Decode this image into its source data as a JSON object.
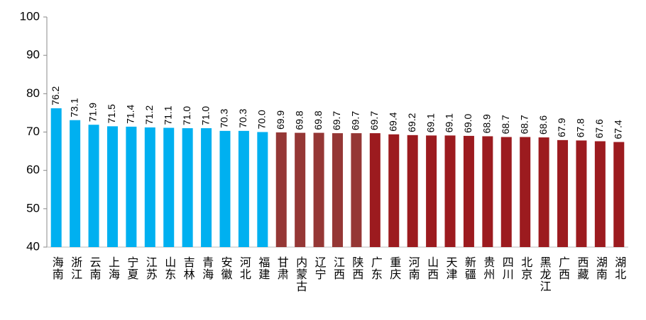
{
  "chart_data": {
    "type": "bar",
    "categories": [
      "海南",
      "浙江",
      "云南",
      "上海",
      "宁夏",
      "江苏",
      "山东",
      "吉林",
      "青海",
      "安徽",
      "河北",
      "福建",
      "甘肃",
      "内蒙古",
      "辽宁",
      "江西",
      "陕西",
      "广东",
      "重庆",
      "河南",
      "山西",
      "天津",
      "新疆",
      "贵州",
      "四川",
      "北京",
      "黑龙江",
      "广西",
      "西藏",
      "湖南",
      "湖北"
    ],
    "values": [
      76.2,
      73.1,
      71.9,
      71.5,
      71.4,
      71.2,
      71.1,
      71,
      71,
      70.3,
      70.3,
      70,
      69.9,
      69.8,
      69.8,
      69.7,
      69.7,
      69.7,
      69.4,
      69.2,
      69.1,
      69.1,
      69,
      68.9,
      68.7,
      68.7,
      68.6,
      67.9,
      67.8,
      67.6,
      67.4
    ],
    "value_labels": [
      "76.2",
      "73.1",
      "71.9",
      "71.5",
      "71.4",
      "71.2",
      "71.1",
      "71.0",
      "71.0",
      "70.3",
      "70.3",
      "70.0",
      "69.9",
      "69.8",
      "69.8",
      "69.7",
      "69.7",
      "69.7",
      "69.4",
      "69.2",
      "69.1",
      "69.1",
      "69.0",
      "68.9",
      "68.7",
      "68.7",
      "68.6",
      "67.9",
      "67.8",
      "67.6",
      "67.4"
    ],
    "colors": [
      "#00b0f0",
      "#00b0f0",
      "#00b0f0",
      "#00b0f0",
      "#00b0f0",
      "#00b0f0",
      "#00b0f0",
      "#00b0f0",
      "#00b0f0",
      "#00b0f0",
      "#00b0f0",
      "#00b0f0",
      "#953735",
      "#953735",
      "#953735",
      "#953735",
      "#953735",
      "#9c1b1f",
      "#9c1b1f",
      "#9c1b1f",
      "#9c1b1f",
      "#9c1b1f",
      "#9c1b1f",
      "#9c1b1f",
      "#9c1b1f",
      "#9c1b1f",
      "#9c1b1f",
      "#9c1b1f",
      "#9c1b1f",
      "#9c1b1f",
      "#9c1b1f"
    ],
    "ylim": [
      40,
      100
    ],
    "yticks": [
      40,
      50,
      60,
      70,
      80,
      90,
      100
    ],
    "grid": false
  }
}
